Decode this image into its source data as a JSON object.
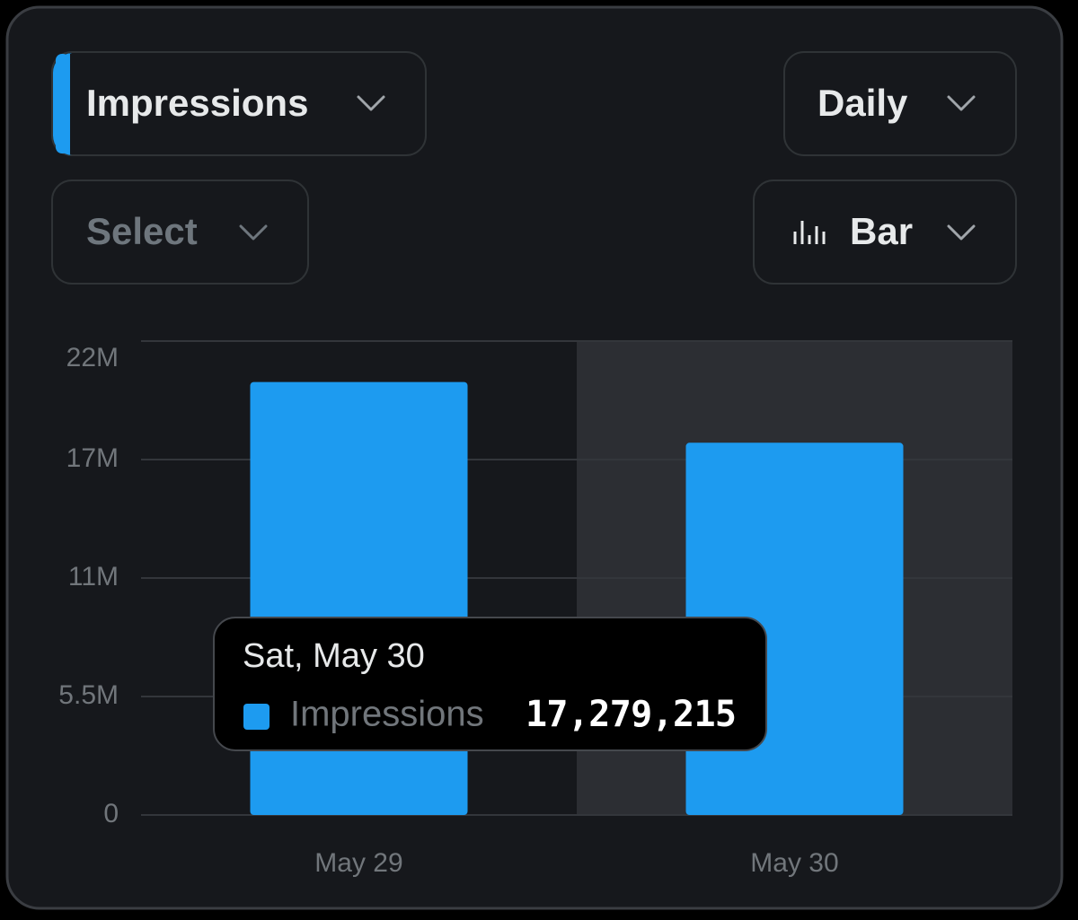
{
  "controls": {
    "metric": "Impressions",
    "period": "Daily",
    "compare": "Select",
    "chart_type": "Bar"
  },
  "chart_data": {
    "type": "bar",
    "categories": [
      "May 29",
      "May 30"
    ],
    "series": [
      {
        "name": "Impressions",
        "color": "#1d9bf0",
        "values": [
          20100000,
          17279215
        ],
        "value_labels": [
          null,
          "17,279,215"
        ]
      }
    ],
    "ylim": [
      0,
      22000000
    ],
    "yticks": [
      0,
      {
        "value": 5500000,
        "label": "5.5M"
      },
      {
        "value": 11000000,
        "label": "11M"
      },
      {
        "value": 16500000,
        "label": "17M"
      },
      {
        "value": 22000000,
        "label": "22M"
      }
    ],
    "grid": true,
    "tooltip_title": "Sat, May 30"
  }
}
